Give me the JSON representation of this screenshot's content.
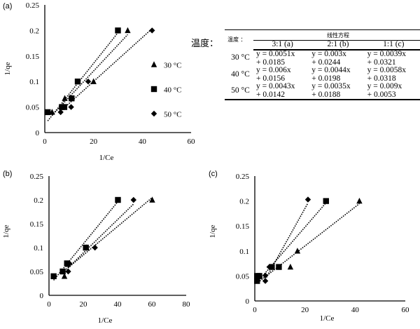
{
  "chart_data": [
    {
      "panel": "(a)",
      "type": "scatter",
      "xlabel": "1/Ce",
      "ylabel": "1/qe",
      "xlim": [
        0,
        60
      ],
      "ylim": [
        0,
        0.25
      ],
      "xticks": [
        "0",
        "20",
        "40",
        "60"
      ],
      "yticks": [
        "0",
        "0.05",
        "0.1",
        "0.15",
        "0.2",
        "0.25"
      ],
      "legend": "right",
      "trendline": "linear dotted",
      "series": [
        {
          "name": "30 °C",
          "marker": "triangle",
          "x": [
            3,
            7,
            8.2,
            20,
            34
          ],
          "y": [
            0.04,
            0.05,
            0.067,
            0.1,
            0.2
          ],
          "fit": [
            0.0051,
            0.0185
          ]
        },
        {
          "name": "40 °C",
          "marker": "square",
          "x": [
            1.2,
            7,
            8,
            11,
            13.5,
            30
          ],
          "y": [
            0.04,
            0.05,
            0.05,
            0.067,
            0.1,
            0.2
          ],
          "fit": [
            0.006,
            0.0156
          ]
        },
        {
          "name": "50 °C",
          "marker": "diamond",
          "x": [
            6.5,
            10.8,
            17.8,
            44
          ],
          "y": [
            0.04,
            0.05,
            0.1,
            0.2
          ],
          "fit": [
            0.0043,
            0.0142
          ]
        }
      ]
    },
    {
      "panel": "(b)",
      "type": "scatter",
      "xlabel": "1/Ce",
      "ylabel": "1/qe",
      "xlim": [
        0,
        80
      ],
      "ylim": [
        0,
        0.25
      ],
      "xticks": [
        "0",
        "20",
        "40",
        "60",
        "80"
      ],
      "yticks": [
        "0",
        "0.05",
        "0.1",
        "0.15",
        "0.2",
        "0.25"
      ],
      "trendline": "linear dotted",
      "series": [
        {
          "marker": "triangle",
          "x": [
            9,
            11,
            22,
            60.2
          ],
          "y": [
            0.04,
            0.065,
            0.1,
            0.2
          ],
          "fit": [
            0.003,
            0.0244
          ]
        },
        {
          "marker": "square",
          "x": [
            2.7,
            8,
            10.5,
            21.5,
            40.2
          ],
          "y": [
            0.04,
            0.05,
            0.067,
            0.1,
            0.2
          ],
          "fit": [
            0.0044,
            0.0198
          ]
        },
        {
          "marker": "diamond",
          "x": [
            11.2,
            11.9,
            26.8,
            49.3
          ],
          "y": [
            0.05,
            0.067,
            0.1,
            0.2
          ],
          "fit": [
            0.0035,
            0.0188
          ]
        }
      ]
    },
    {
      "panel": "(c)",
      "type": "scatter",
      "xlabel": "1/Ce",
      "ylabel": "1/qe",
      "xlim": [
        0,
        60
      ],
      "ylim": [
        0,
        0.25
      ],
      "xticks": [
        "0",
        "20",
        "40",
        "60"
      ],
      "yticks": [
        "0",
        "0.05",
        "0.1",
        "0.15",
        "0.2",
        "0.25"
      ],
      "trendline": "linear dotted",
      "series": [
        {
          "marker": "triangle",
          "x": [
            2,
            14.2,
            17,
            41.7
          ],
          "y": [
            0.05,
            0.068,
            0.1,
            0.2
          ],
          "fit": [
            0.0039,
            0.0321
          ]
        },
        {
          "marker": "square",
          "x": [
            0.9,
            0.9,
            1.8,
            6.8,
            9.6,
            28.4
          ],
          "y": [
            0.04,
            0.05,
            0.05,
            0.068,
            0.068,
            0.2
          ],
          "fit": [
            0.0058,
            0.0318
          ]
        },
        {
          "marker": "diamond",
          "x": [
            4.2,
            4.2,
            5.8,
            21.2
          ],
          "y": [
            0.04,
            0.051,
            0.068,
            0.203
          ],
          "fit": [
            0.009,
            0.0053
          ]
        }
      ]
    }
  ],
  "table": {
    "outer_label": "温度：",
    "corner": "温度 ：",
    "group_header": "线性方程",
    "columns": [
      "3:1 (a)",
      "2:1 (b)",
      "1:1 (c)"
    ],
    "rows": [
      {
        "temp": "30 °C",
        "cells": [
          [
            "y = 0.0051x",
            "+ 0.0185"
          ],
          [
            "y = 0.003x",
            "+ 0.0244"
          ],
          [
            "y = 0.0039x",
            "+ 0.0321"
          ]
        ]
      },
      {
        "temp": "40 °C",
        "cells": [
          [
            "y = 0.006x",
            "+ 0.0156"
          ],
          [
            "y = 0.0044x",
            "+ 0.0198"
          ],
          [
            "y = 0.0058x",
            "+ 0.0318"
          ]
        ]
      },
      {
        "temp": "50 °C",
        "cells": [
          [
            "y = 0.0043x",
            "+ 0.0142"
          ],
          [
            "y = 0.0035x",
            "+ 0.0188"
          ],
          [
            "y = 0.009x",
            "+ 0.0053"
          ]
        ]
      }
    ]
  }
}
